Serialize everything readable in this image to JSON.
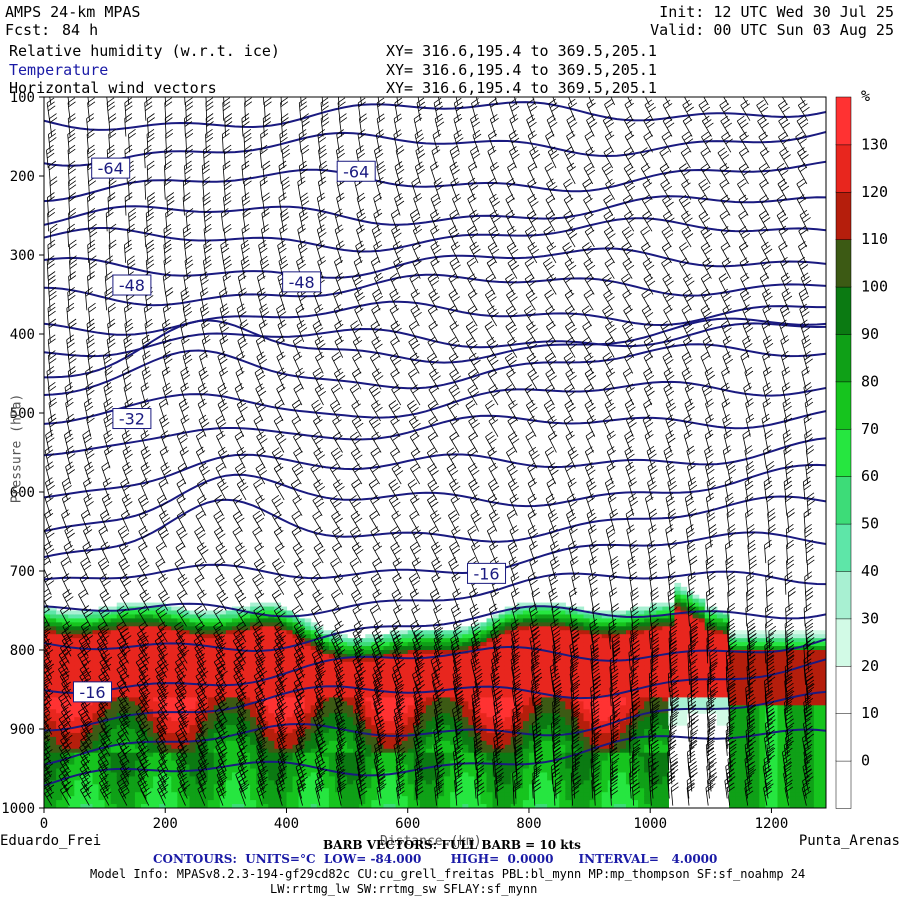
{
  "header": {
    "model": "AMPS 24-km MPAS",
    "fcst_label": "Fcst:",
    "fcst_value": "84 h",
    "init": "Init: 12 UTC Wed 30 Jul 25",
    "valid": "Valid: 00 UTC Sun 03 Aug 25",
    "fields": [
      {
        "name": "Relative humidity (w.r.t. ice)",
        "xy": "XY= 316.6,195.4 to 369.5,205.1"
      },
      {
        "name": "Temperature",
        "xy": "XY= 316.6,195.4 to 369.5,205.1"
      },
      {
        "name": "Horizontal wind vectors",
        "xy": "XY= 316.6,195.4 to 369.5,205.1"
      }
    ]
  },
  "footer": {
    "barb": "BARB VECTORS: FULL BARB = 10 kts",
    "contours": "CONTOURS:  UNITS=°C  LOW= -84.000       HIGH=  0.0000      INTERVAL=   4.0000",
    "model_info": "Model Info: MPASv8.2.3-194-gf29cd82c CU:cu_grell_freitas PBL:bl_mynn MP:mp_thompson SF:sf_noahmp 24",
    "model_info2": "LW:rrtmg_lw SW:rrtmg_sw SFLAY:sf_mynn"
  },
  "chart_data": {
    "type": "heatmap",
    "title": "Relative humidity (w.r.t. ice), Temperature, Horizontal wind vectors",
    "xlabel": "Distance (km)",
    "ylabel": "Pressure (hPa)",
    "x_start_label": "Eduardo_Frei",
    "x_end_label": "Punta_Arenas",
    "xlim": [
      0,
      1290
    ],
    "ylim": [
      1000,
      100
    ],
    "x_ticks": [
      0,
      200,
      400,
      600,
      800,
      1000,
      1200
    ],
    "y_ticks": [
      100,
      200,
      300,
      400,
      500,
      600,
      700,
      800,
      900,
      1000
    ],
    "colorbar": {
      "unit": "%",
      "levels": [
        0,
        10,
        20,
        30,
        40,
        50,
        60,
        70,
        80,
        90,
        100,
        110,
        120,
        130
      ],
      "colors": [
        "#ffffff",
        "#ffffff",
        "#ffffff",
        "#d2fae6",
        "#a8f0d2",
        "#5ee6a8",
        "#3ddc78",
        "#26e640",
        "#16c41e",
        "#0fa017",
        "#0b7a12",
        "#3c5a14",
        "#b51e0c",
        "#e8261e",
        "#ff3232"
      ]
    },
    "temperature_contours": {
      "units": "°C",
      "low": -84.0,
      "high": 0.0,
      "interval": 4.0,
      "labels": [
        {
          "text": "-64",
          "x": 110,
          "p": 190
        },
        {
          "text": "-64",
          "x": 515,
          "p": 194
        },
        {
          "text": "-48",
          "x": 145,
          "p": 338
        },
        {
          "text": "-48",
          "x": 425,
          "p": 334
        },
        {
          "text": "-32",
          "x": 145,
          "p": 507
        },
        {
          "text": "-16",
          "x": 730,
          "p": 703
        },
        {
          "text": "-16",
          "x": 80,
          "p": 853
        }
      ]
    }
  }
}
